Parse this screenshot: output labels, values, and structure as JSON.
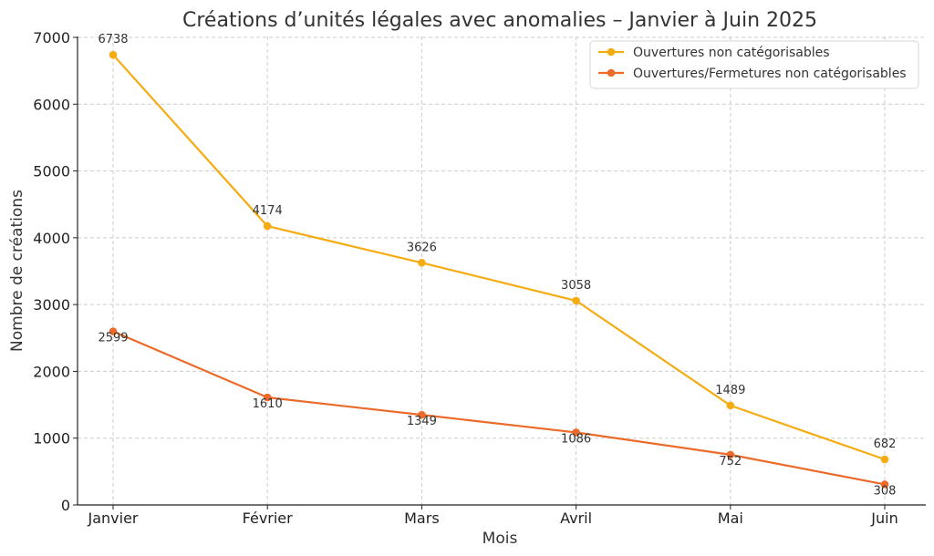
{
  "chart_data": {
    "type": "line",
    "title": "Créations d’unités légales avec anomalies – Janvier à Juin 2025",
    "xlabel": "Mois",
    "ylabel": "Nombre de créations",
    "categories": [
      "Janvier",
      "Février",
      "Mars",
      "Avril",
      "Mai",
      "Juin"
    ],
    "ylim": [
      0,
      7000
    ],
    "yticks": [
      0,
      1000,
      2000,
      3000,
      4000,
      5000,
      6000,
      7000
    ],
    "grid": true,
    "legend_position": "top-right",
    "series": [
      {
        "name": "Ouvertures non catégorisables",
        "color": "#f5ac12",
        "values": [
          6738,
          4174,
          3626,
          3058,
          1489,
          682
        ],
        "label_position": "above"
      },
      {
        "name": "Ouvertures/Fermetures non catégorisables",
        "color": "#ec6a2a",
        "values": [
          2599,
          1610,
          1349,
          1086,
          752,
          308
        ],
        "label_position": "below"
      }
    ]
  }
}
